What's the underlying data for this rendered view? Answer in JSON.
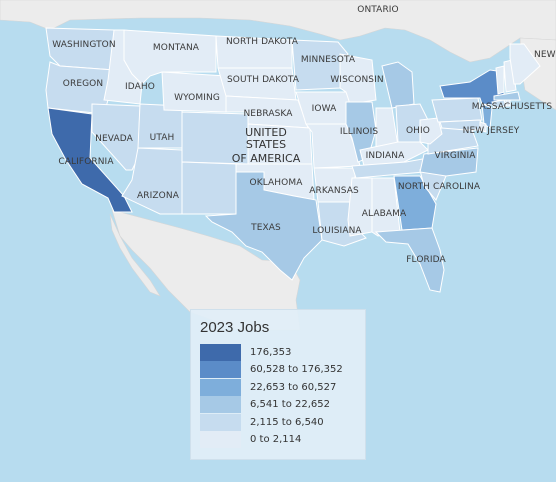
{
  "map": {
    "country_label": [
      "UNITED",
      "STATES",
      "OF AMERICA"
    ],
    "neighbor_labels": {
      "ontario": "ONTARIO",
      "nb": "NEW B"
    },
    "state_labels": {
      "washington": "WASHINGTON",
      "montana": "MONTANA",
      "north_dakota": "NORTH DAKOTA",
      "minnesota": "MINNESOTA",
      "oregon": "OREGON",
      "idaho": "IDAHO",
      "south_dakota": "SOUTH DAKOTA",
      "wisconsin": "WISCONSIN",
      "wyoming": "WYOMING",
      "iowa": "IOWA",
      "nebraska": "NEBRASKA",
      "nevada": "NEVADA",
      "utah": "UTAH",
      "illinois": "ILLINOIS",
      "ohio": "OHIO",
      "indiana": "INDIANA",
      "california": "CALIFORNIA",
      "virginia": "VIRGINIA",
      "oklahoma": "OKLAHOMA",
      "arkansas": "ARKANSAS",
      "north_carolina": "NORTH CAROLINA",
      "arizona": "ARIZONA",
      "texas": "TEXAS",
      "louisiana": "LOUISIANA",
      "alabama": "ALABAMA",
      "florida": "FLORIDA",
      "massachusetts": "MASSACHUSETTS",
      "new_jersey": "NEW JERSEY"
    },
    "state_class": {
      "CA": 0,
      "NY": 1,
      "GA": 2,
      "TX": 3,
      "IL": 3,
      "FL": 3,
      "NC": 3,
      "MI": 3,
      "WA": 4,
      "OR": 4,
      "CO": 4,
      "PA": 4,
      "NJ": 2,
      "MA": 3,
      "VA": 4,
      "OH": 4,
      "NV": 4,
      "UT": 4,
      "AZ": 4,
      "TN": 4,
      "MN": 4,
      "WI": 5,
      "IN": 5,
      "MO": 5,
      "OK": 5,
      "LA": 4,
      "SC": 4,
      "KY": 5,
      "AL": 5,
      "MS": 5,
      "AR": 5,
      "KS": 5,
      "NE": 5,
      "IA": 5,
      "NM": 4,
      "WY": 5,
      "MT": 5,
      "ID": 5,
      "ND": 5,
      "SD": 5,
      "ME": 5,
      "VT": 5,
      "NH": 5,
      "CT": 4,
      "RI": 5,
      "DE": 5,
      "MD": 4,
      "WV": 5
    }
  },
  "legend": {
    "title": "2023 Jobs",
    "classes": [
      {
        "label": "176,353",
        "color": "#3e6aab"
      },
      {
        "label": "60,528 to 176,352",
        "color": "#5b8cc8"
      },
      {
        "label": "22,653 to 60,527",
        "color": "#7eaedb"
      },
      {
        "label": "6,541 to 22,652",
        "color": "#a6c9e6"
      },
      {
        "label": "2,115 to 6,540",
        "color": "#c6dcef"
      },
      {
        "label": "0 to 2,114",
        "color": "#e2ecf6"
      }
    ]
  },
  "colors": {
    "water": "#b7dcef",
    "land": "#ececec",
    "border": "#ffffff"
  }
}
